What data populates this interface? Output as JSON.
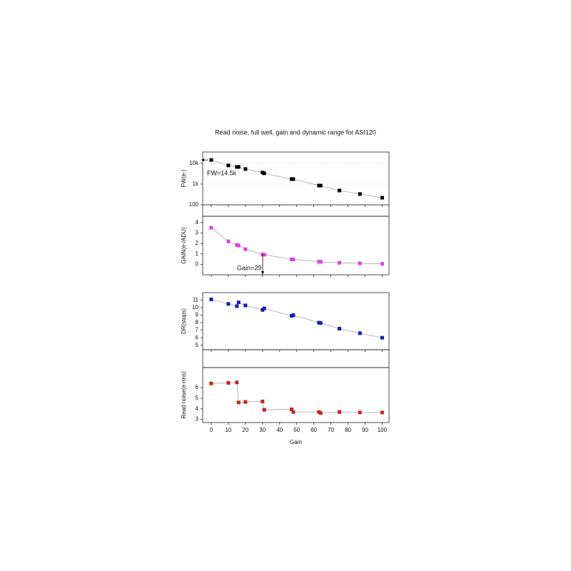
{
  "title": "Read noise, full well, gain and dynamic range for ASI120",
  "chart_data": [
    {
      "type": "line",
      "ylabel": "FW(e-)",
      "log_y": true,
      "grid": true,
      "color": "#000000",
      "annotation": "FW=14.5k",
      "x": [
        0,
        10,
        15,
        16,
        20,
        30,
        31,
        47,
        48,
        63,
        64,
        75,
        87,
        100
      ],
      "values": [
        14500,
        7900,
        6700,
        6700,
        5300,
        3600,
        3300,
        1740,
        1740,
        850,
        850,
        490,
        330,
        220
      ],
      "xlim": [
        -5,
        104
      ],
      "ylim": [
        100,
        35000
      ],
      "yticks": [
        100,
        {
          "value": 1000,
          "label": "1k"
        },
        {
          "value": 10000,
          "label": "10k"
        }
      ]
    },
    {
      "type": "line",
      "ylabel": "GAIN(e-/ADU)",
      "color": "#e040e0",
      "annotation": "Gain=29",
      "x": [
        0,
        10,
        15,
        16,
        20,
        30,
        31,
        47,
        48,
        63,
        64,
        75,
        87,
        100
      ],
      "values": [
        3.5,
        2.2,
        1.85,
        1.8,
        1.45,
        0.95,
        0.92,
        0.48,
        0.47,
        0.25,
        0.24,
        0.15,
        0.1,
        0.05
      ],
      "xlim": [
        -5,
        104
      ],
      "ylim": [
        -1,
        4.6
      ],
      "yticks": [
        0,
        1,
        2,
        3,
        4
      ]
    },
    {
      "type": "line",
      "ylabel": "DR(stops)",
      "color": "#1818c0",
      "x": [
        0,
        10,
        15,
        16,
        20,
        30,
        31,
        47,
        48,
        63,
        64,
        75,
        87,
        100
      ],
      "values": [
        11.1,
        10.5,
        10.2,
        10.7,
        10.3,
        9.7,
        9.9,
        8.9,
        9.0,
        8.0,
        7.95,
        7.2,
        6.6,
        6.0
      ],
      "xlim": [
        -5,
        104
      ],
      "ylim": [
        4.4,
        12
      ],
      "yticks": [
        5,
        6,
        7,
        8,
        9,
        10,
        11
      ]
    },
    {
      "type": "line",
      "ylabel": "Read noise(e-rms)",
      "xlabel": "Gain",
      "color": "#d02020",
      "x": [
        0,
        10,
        15,
        16,
        20,
        30,
        31,
        47,
        48,
        63,
        64,
        75,
        87,
        100
      ],
      "values": [
        6.4,
        6.45,
        6.5,
        4.6,
        4.65,
        4.7,
        3.9,
        3.95,
        3.7,
        3.7,
        3.6,
        3.7,
        3.65,
        3.65
      ],
      "xlim": [
        -5,
        104
      ],
      "ylim": [
        2.7,
        7.9
      ],
      "yticks": [
        3,
        4,
        5,
        6
      ],
      "xticks": [
        0,
        10,
        20,
        30,
        40,
        50,
        60,
        70,
        80,
        90,
        100
      ]
    }
  ]
}
